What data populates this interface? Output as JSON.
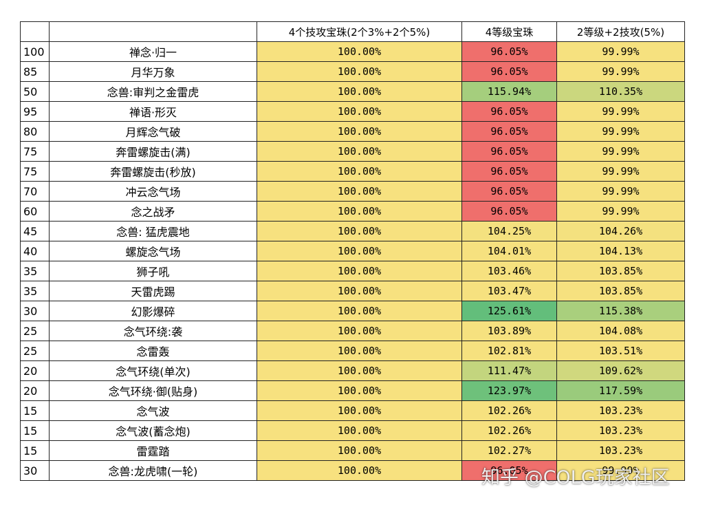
{
  "headers": [
    "",
    "",
    "4个技攻宝珠(2个3%+2个5%)",
    "4等级宝珠",
    "2等级+2技攻(5%)"
  ],
  "rows": [
    {
      "level": "100",
      "skill": "禅念·归一",
      "a": "100.00%",
      "b": "96.05%",
      "c": "99.99%"
    },
    {
      "level": "85",
      "skill": "月华万象",
      "a": "100.00%",
      "b": "96.05%",
      "c": "99.99%"
    },
    {
      "level": "50",
      "skill": "念兽:审判之金雷虎",
      "a": "100.00%",
      "b": "115.94%",
      "c": "110.35%"
    },
    {
      "level": "95",
      "skill": "禅语·形灭",
      "a": "100.00%",
      "b": "96.05%",
      "c": "99.99%"
    },
    {
      "level": "80",
      "skill": "月辉念气破",
      "a": "100.00%",
      "b": "96.05%",
      "c": "99.99%"
    },
    {
      "level": "75",
      "skill": "奔雷螺旋击(满)",
      "a": "100.00%",
      "b": "96.05%",
      "c": "99.99%"
    },
    {
      "level": "75",
      "skill": "奔雷螺旋击(秒放)",
      "a": "100.00%",
      "b": "96.05%",
      "c": "99.99%"
    },
    {
      "level": "70",
      "skill": "冲云念气场",
      "a": "100.00%",
      "b": "96.05%",
      "c": "99.99%"
    },
    {
      "level": "60",
      "skill": "念之战矛",
      "a": "100.00%",
      "b": "96.05%",
      "c": "99.99%"
    },
    {
      "level": "45",
      "skill": "念兽: 猛虎震地",
      "a": "100.00%",
      "b": "104.25%",
      "c": "104.26%"
    },
    {
      "level": "40",
      "skill": "螺旋念气场",
      "a": "100.00%",
      "b": "104.01%",
      "c": "104.13%"
    },
    {
      "level": "35",
      "skill": "狮子吼",
      "a": "100.00%",
      "b": "103.46%",
      "c": "103.85%"
    },
    {
      "level": "35",
      "skill": "天雷虎踢",
      "a": "100.00%",
      "b": "103.47%",
      "c": "103.85%"
    },
    {
      "level": "30",
      "skill": "幻影爆碎",
      "a": "100.00%",
      "b": "125.61%",
      "c": "115.38%"
    },
    {
      "level": "25",
      "skill": "念气环绕:袭",
      "a": "100.00%",
      "b": "103.89%",
      "c": "104.08%"
    },
    {
      "level": "25",
      "skill": "念雷轰",
      "a": "100.00%",
      "b": "102.81%",
      "c": "103.51%"
    },
    {
      "level": "20",
      "skill": "念气环绕(单次)",
      "a": "100.00%",
      "b": "111.47%",
      "c": "109.62%"
    },
    {
      "level": "20",
      "skill": "念气环绕·御(贴身)",
      "a": "100.00%",
      "b": "123.97%",
      "c": "117.59%"
    },
    {
      "level": "15",
      "skill": "念气波",
      "a": "100.00%",
      "b": "102.26%",
      "c": "103.23%"
    },
    {
      "level": "15",
      "skill": "念气波(蓄念炮)",
      "a": "100.00%",
      "b": "102.26%",
      "c": "103.23%"
    },
    {
      "level": "15",
      "skill": "雷霆踏",
      "a": "100.00%",
      "b": "102.27%",
      "c": "103.23%"
    },
    {
      "level": "30",
      "skill": "念兽:龙虎啸(一轮)",
      "a": "100.00%",
      "b": "96.05%",
      "c": "99.99%"
    }
  ],
  "colors": {
    "baseline": "#f7e17f",
    "red": "#ef6f6c",
    "yellow": "#f6e17f",
    "green": "#63be7b"
  },
  "watermark": "知乎 @COLG玩家社区"
}
